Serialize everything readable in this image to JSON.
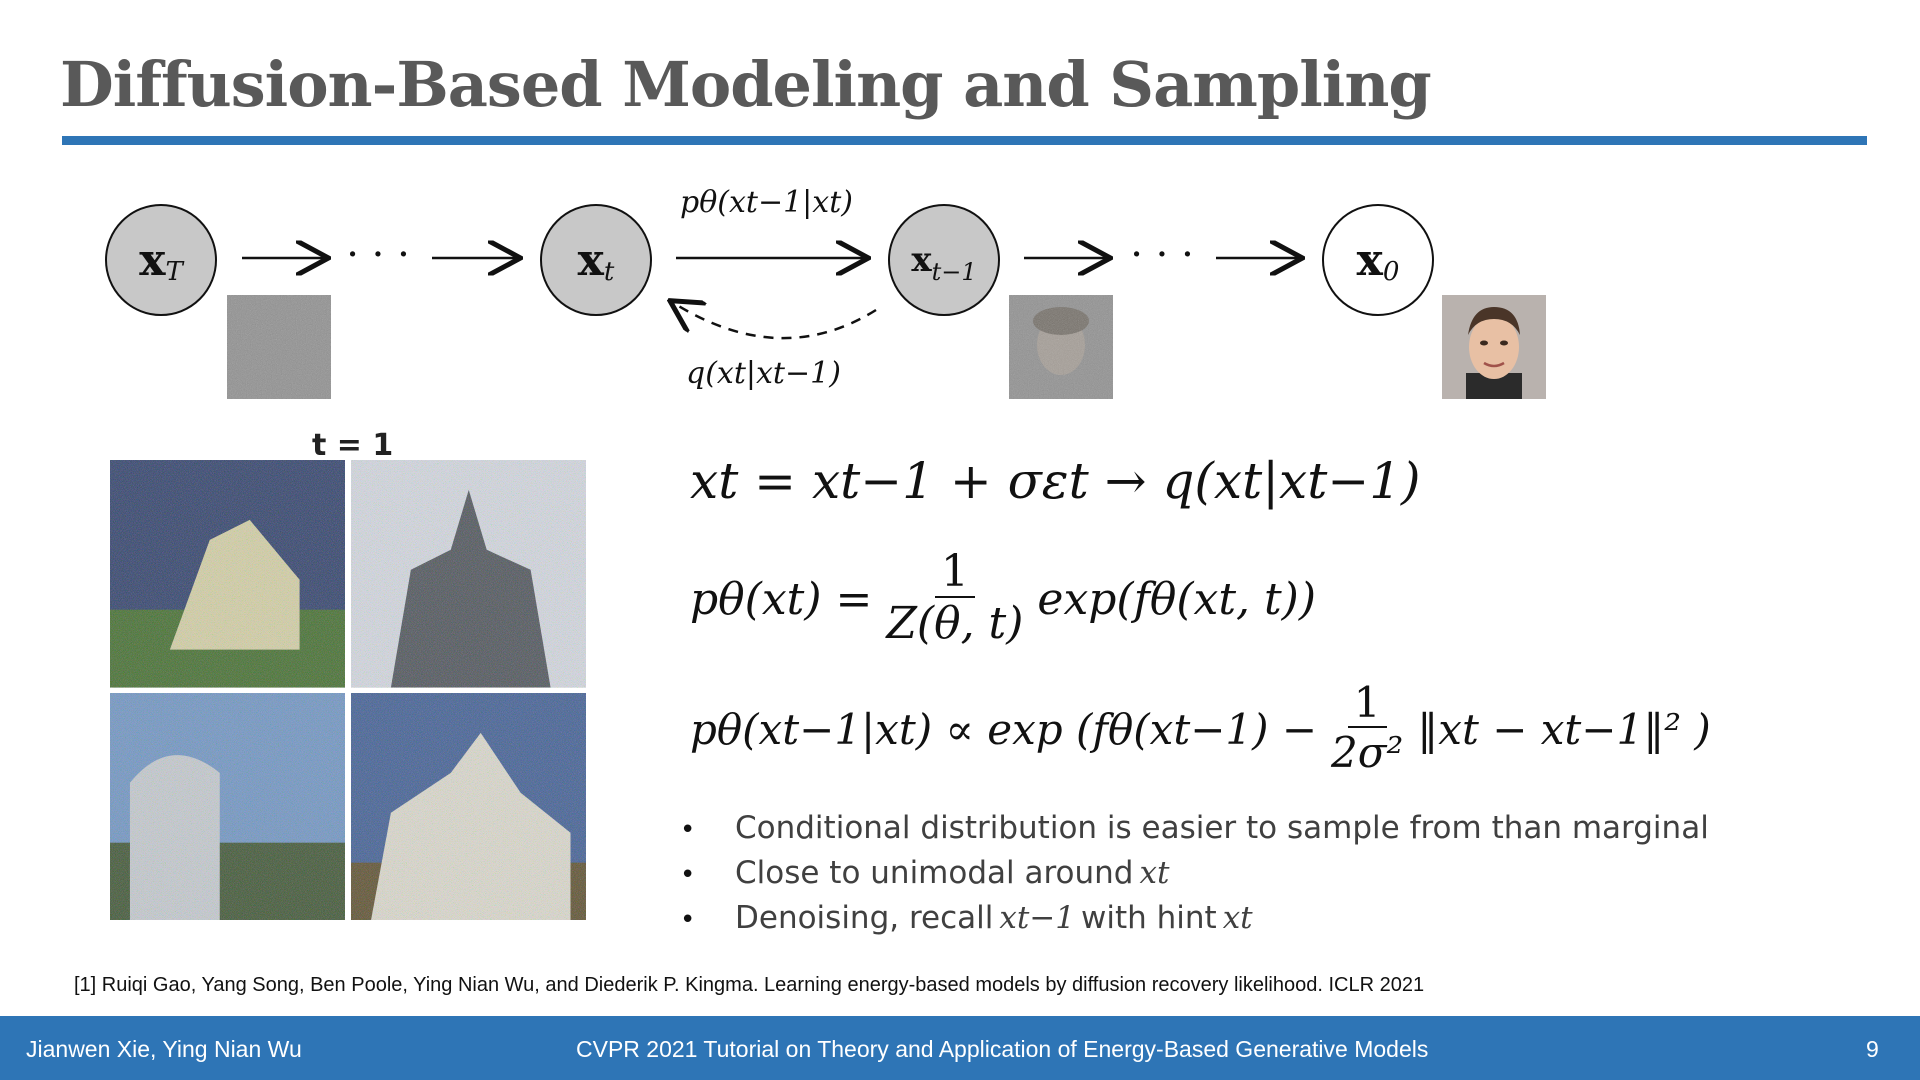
{
  "slide": {
    "title": "Diffusion-Based Modeling and Sampling",
    "diagram": {
      "nodes": [
        {
          "main": "x",
          "sub": "T"
        },
        {
          "main": "x",
          "sub": "t"
        },
        {
          "main": "x",
          "sub": "t−1"
        },
        {
          "main": "x",
          "sub": "0"
        }
      ],
      "ellipsis": "· · ·",
      "reverse_label": "pθ(xt−1|xt)",
      "forward_label": "q(xt|xt−1)"
    },
    "grid_label": "t = 1",
    "equations": {
      "eq1": "xt = xt−1 + σεt  → q(xt|xt−1)",
      "eq2_lhs": "pθ(xt) =",
      "eq2_num": "1",
      "eq2_den": "Z(θ, t)",
      "eq2_rhs": "exp(fθ(xt, t))",
      "eq3_lhs": "pθ(xt−1|xt) ∝ exp (fθ(xt−1) −",
      "eq3_num": "1",
      "eq3_den": "2σ²",
      "eq3_rhs": "‖xt − xt−1‖² )"
    },
    "bullets": [
      {
        "text": "Conditional distribution is easier to sample from than marginal",
        "math": "",
        "tail": "",
        "math2": ""
      },
      {
        "text": "Close to unimodal around",
        "math": "xt",
        "tail": "",
        "math2": ""
      },
      {
        "text": "Denoising, recall",
        "math": "xt−1",
        "tail": "with hint",
        "math2": "xt"
      }
    ],
    "reference": "[1] Ruiqi Gao, Yang Song, Ben Poole, Ying Nian Wu, and Diederik P. Kingma. Learning energy-based models by diffusion recovery likelihood. ICLR 2021",
    "footer": {
      "authors": "Jianwen Xie, Ying Nian Wu",
      "event": "CVPR 2021 Tutorial on Theory and Application of Energy-Based Generative Models",
      "page": "9"
    }
  }
}
